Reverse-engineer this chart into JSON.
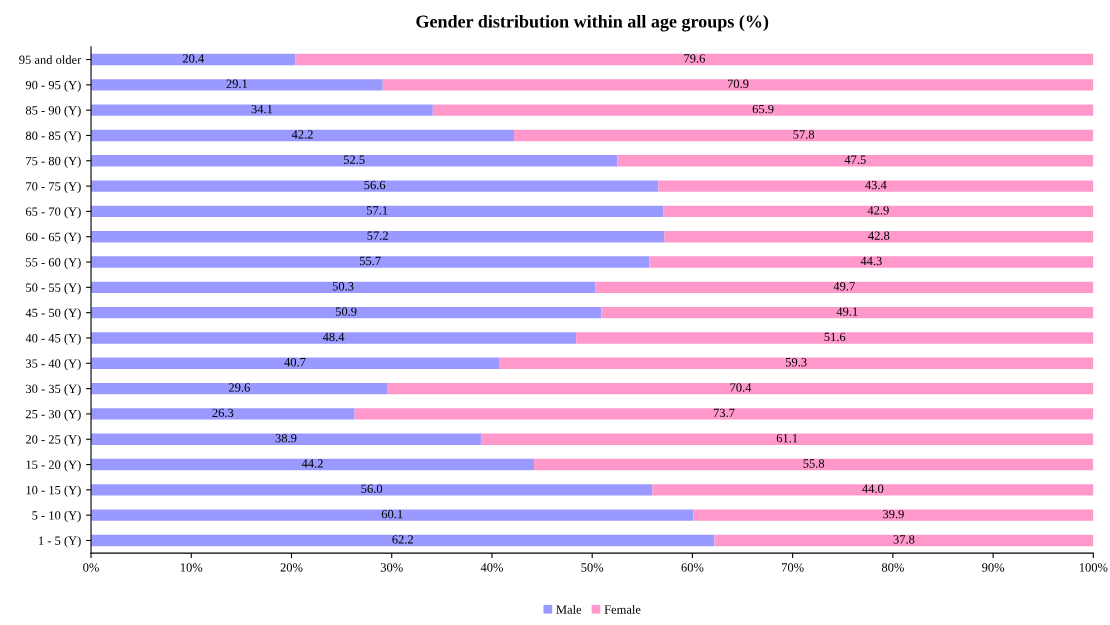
{
  "chart_data": {
    "type": "bar",
    "orientation": "horizontal",
    "stacked": true,
    "title": "Gender distribution within all age groups (%)",
    "categories": [
      "95 and older",
      "90 - 95 (Y)",
      "85 - 90 (Y)",
      "80 - 85 (Y)",
      "75 - 80 (Y)",
      "70 - 75 (Y)",
      "65 - 70 (Y)",
      "60 - 65 (Y)",
      "55 - 60 (Y)",
      "50 - 55 (Y)",
      "45 - 50 (Y)",
      "40 - 45 (Y)",
      "35 - 40 (Y)",
      "30 - 35 (Y)",
      "25 - 30 (Y)",
      "20 - 25 (Y)",
      "15 - 20 (Y)",
      "10 - 15 (Y)",
      "5 - 10 (Y)",
      "1 - 5 (Y)"
    ],
    "series": [
      {
        "name": "Male",
        "color": "#9999ff",
        "values": [
          20.4,
          29.1,
          34.1,
          42.2,
          52.5,
          56.6,
          57.1,
          57.2,
          55.7,
          50.3,
          50.9,
          48.4,
          40.7,
          29.6,
          26.3,
          38.9,
          44.2,
          56.0,
          60.1,
          62.2
        ],
        "value_labels": [
          "20.4",
          "29.1",
          "34.1",
          "42.2",
          "52.5",
          "56.6",
          "57.1",
          "57.2",
          "55.7",
          "50.3",
          "50.9",
          "48.4",
          "40.7",
          "29.6",
          "26.3",
          "38.9",
          "44.2",
          "56.0",
          "60.1",
          "62.2"
        ]
      },
      {
        "name": "Female",
        "color": "#ff99cc",
        "values": [
          79.6,
          70.9,
          65.9,
          57.8,
          47.5,
          43.4,
          42.9,
          42.8,
          44.3,
          49.7,
          49.1,
          51.6,
          59.3,
          70.4,
          73.7,
          61.1,
          55.8,
          44.0,
          39.9,
          37.8
        ],
        "value_labels": [
          "79.6",
          "70.9",
          "65.9",
          "57.8",
          "47.5",
          "43.4",
          "42.9",
          "42.8",
          "44.3",
          "49.7",
          "49.1",
          "51.6",
          "59.3",
          "70.4",
          "73.7",
          "61.1",
          "55.8",
          "44.0",
          "39.9",
          "37.8"
        ]
      }
    ],
    "xlim": [
      0,
      100
    ],
    "xticks": [
      {
        "value": 0,
        "label": "0%"
      },
      {
        "value": 10,
        "label": "10%"
      },
      {
        "value": 20,
        "label": "20%"
      },
      {
        "value": 30,
        "label": "30%"
      },
      {
        "value": 40,
        "label": "40%"
      },
      {
        "value": 50,
        "label": "50%"
      },
      {
        "value": 60,
        "label": "60%"
      },
      {
        "value": 70,
        "label": "70%"
      },
      {
        "value": 80,
        "label": "80%"
      },
      {
        "value": 90,
        "label": "90%"
      },
      {
        "value": 100,
        "label": "100%"
      }
    ],
    "legend": "bottom",
    "grid": false
  }
}
